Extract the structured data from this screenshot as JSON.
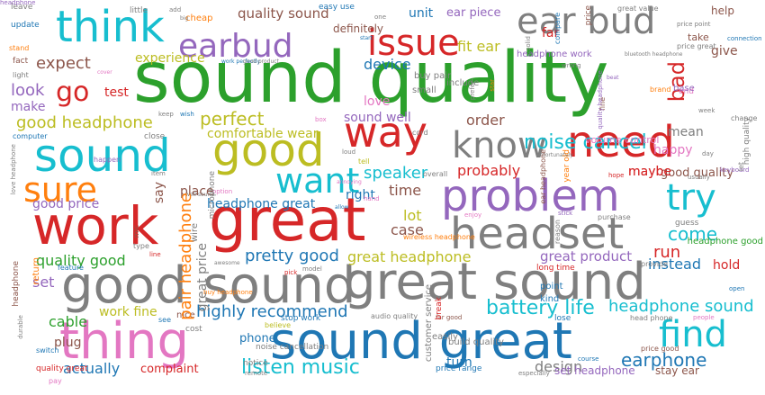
{
  "palette": {
    "green": "#2ca02c",
    "blue": "#1f77b4",
    "orange": "#ff7f0e",
    "red": "#d62728",
    "purple": "#9467bd",
    "brown": "#8c564b",
    "pink": "#e377c2",
    "gray": "#7f7f7f",
    "olive": "#bcbd22",
    "cyan": "#17becf"
  },
  "words": [
    {
      "text": "sound quality",
      "color": "green",
      "size": 78
    },
    {
      "text": "good sound",
      "color": "gray",
      "size": 56
    },
    {
      "text": "great sound",
      "color": "gray",
      "size": 56
    },
    {
      "text": "sound great",
      "color": "blue",
      "size": 56
    },
    {
      "text": "great",
      "color": "red",
      "size": 66
    },
    {
      "text": "work",
      "color": "red",
      "size": 58
    },
    {
      "text": "sound",
      "color": "cyan",
      "size": 50
    },
    {
      "text": "good",
      "color": "olive",
      "size": 50
    },
    {
      "text": "thing",
      "color": "pink",
      "size": 56
    },
    {
      "text": "problem",
      "color": "purple",
      "size": 48
    },
    {
      "text": "headset",
      "color": "gray",
      "size": 48
    },
    {
      "text": "think",
      "color": "cyan",
      "size": 48
    },
    {
      "text": "need",
      "color": "red",
      "size": 48
    },
    {
      "text": "issue",
      "color": "red",
      "size": 40
    },
    {
      "text": "ear bud",
      "color": "gray",
      "size": 40
    },
    {
      "text": "earbud",
      "color": "purple",
      "size": 36
    },
    {
      "text": "way",
      "color": "red",
      "size": 46
    },
    {
      "text": "know",
      "color": "gray",
      "size": 40
    },
    {
      "text": "want",
      "color": "cyan",
      "size": 38
    },
    {
      "text": "sure",
      "color": "orange",
      "size": 38
    },
    {
      "text": "try",
      "color": "cyan",
      "size": 40
    },
    {
      "text": "find",
      "color": "cyan",
      "size": 40
    },
    {
      "text": "go",
      "color": "red",
      "size": 30
    },
    {
      "text": "bad",
      "color": "red",
      "size": 24
    },
    {
      "text": "noise cancel",
      "color": "cyan",
      "size": 22
    },
    {
      "text": "battery life",
      "color": "cyan",
      "size": 22
    },
    {
      "text": "listen music",
      "color": "cyan",
      "size": 22
    },
    {
      "text": "highly recommend",
      "color": "blue",
      "size": 18
    },
    {
      "text": "pretty good",
      "color": "blue",
      "size": 18
    },
    {
      "text": "earphone",
      "color": "blue",
      "size": 20
    },
    {
      "text": "headphone sound",
      "color": "cyan",
      "size": 18
    },
    {
      "text": "good headphone",
      "color": "olive",
      "size": 18
    },
    {
      "text": "perfect",
      "color": "olive",
      "size": 20
    },
    {
      "text": "expect",
      "color": "brown",
      "size": 18
    },
    {
      "text": "look",
      "color": "purple",
      "size": 18
    },
    {
      "text": "make",
      "color": "purple",
      "size": 14
    },
    {
      "text": "test",
      "color": "red",
      "size": 14
    },
    {
      "text": "experience",
      "color": "olive",
      "size": 14
    },
    {
      "text": "quality sound",
      "color": "brown",
      "size": 15
    },
    {
      "text": "definitely",
      "color": "brown",
      "size": 12
    },
    {
      "text": "fit ear",
      "color": "olive",
      "size": 16
    },
    {
      "text": "device",
      "color": "blue",
      "size": 16
    },
    {
      "text": "love",
      "color": "pink",
      "size": 14
    },
    {
      "text": "sound well",
      "color": "purple",
      "size": 14
    },
    {
      "text": "order",
      "color": "brown",
      "size": 16
    },
    {
      "text": "comfortable wear",
      "color": "olive",
      "size": 14
    },
    {
      "text": "speaker",
      "color": "cyan",
      "size": 18
    },
    {
      "text": "probably",
      "color": "red",
      "size": 16
    },
    {
      "text": "time",
      "color": "brown",
      "size": 16
    },
    {
      "text": "lot",
      "color": "olive",
      "size": 16
    },
    {
      "text": "right",
      "color": "blue",
      "size": 14
    },
    {
      "text": "case",
      "color": "brown",
      "size": 16
    },
    {
      "text": "come",
      "color": "cyan",
      "size": 20
    },
    {
      "text": "run",
      "color": "red",
      "size": 18
    },
    {
      "text": "instead",
      "color": "blue",
      "size": 16
    },
    {
      "text": "great headphone",
      "color": "olive",
      "size": 16
    },
    {
      "text": "great product",
      "color": "purple",
      "size": 15
    },
    {
      "text": "headphone great",
      "color": "blue",
      "size": 14
    },
    {
      "text": "quality good",
      "color": "green",
      "size": 16
    },
    {
      "text": "good price",
      "color": "purple",
      "size": 14
    },
    {
      "text": "place",
      "color": "brown",
      "size": 14
    },
    {
      "text": "say",
      "color": "brown",
      "size": 14
    },
    {
      "text": "set",
      "color": "purple",
      "size": 16
    },
    {
      "text": "cable",
      "color": "green",
      "size": 16
    },
    {
      "text": "plug",
      "color": "brown",
      "size": 14
    },
    {
      "text": "actually",
      "color": "blue",
      "size": 16
    },
    {
      "text": "work fine",
      "color": "olive",
      "size": 14
    },
    {
      "text": "complaint",
      "color": "red",
      "size": 13
    },
    {
      "text": "design",
      "color": "gray",
      "size": 16
    },
    {
      "text": "turn",
      "color": "blue",
      "size": 14
    },
    {
      "text": "set headphone",
      "color": "purple",
      "size": 12
    },
    {
      "text": "stay ear",
      "color": "brown",
      "size": 12
    },
    {
      "text": "phone",
      "color": "blue",
      "size": 13
    },
    {
      "text": "mean",
      "color": "gray",
      "size": 14
    },
    {
      "text": "happy",
      "color": "pink",
      "size": 14
    },
    {
      "text": "maybe",
      "color": "red",
      "size": 14
    },
    {
      "text": "good quality",
      "color": "brown",
      "size": 13
    },
    {
      "text": "hold",
      "color": "red",
      "size": 14
    },
    {
      "text": "give",
      "color": "brown",
      "size": 14
    },
    {
      "text": "help",
      "color": "brown",
      "size": 12
    },
    {
      "text": "take",
      "color": "brown",
      "size": 11
    },
    {
      "text": "unit",
      "color": "blue",
      "size": 14
    },
    {
      "text": "ear piece",
      "color": "purple",
      "size": 13
    },
    {
      "text": "far",
      "color": "red",
      "size": 14
    },
    {
      "text": "volume control",
      "color": "pink",
      "size": 11
    },
    {
      "text": "headphone work",
      "color": "purple",
      "size": 10
    },
    {
      "text": "include",
      "color": "gray",
      "size": 10
    },
    {
      "text": "small",
      "color": "gray",
      "size": 10
    },
    {
      "text": "buy pair",
      "color": "gray",
      "size": 10
    },
    {
      "text": "maybe",
      "color": "red",
      "size": 14
    },
    {
      "text": "leave",
      "color": "gray",
      "size": 9
    },
    {
      "text": "little",
      "color": "gray",
      "size": 9
    },
    {
      "text": "update",
      "color": "blue",
      "size": 9
    },
    {
      "text": "fact",
      "color": "brown",
      "size": 9
    },
    {
      "text": "stand",
      "color": "orange",
      "size": 8
    },
    {
      "text": "cheap",
      "color": "orange",
      "size": 10
    },
    {
      "text": "easy use",
      "color": "blue",
      "size": 9
    },
    {
      "text": "price",
      "color": "brown",
      "size": 9
    },
    {
      "text": "great value",
      "color": "gray",
      "size": 8
    },
    {
      "text": "price point",
      "color": "gray",
      "size": 7
    },
    {
      "text": "price great",
      "color": "gray",
      "size": 8
    },
    {
      "text": "connection",
      "color": "blue",
      "size": 7
    },
    {
      "text": "wrong",
      "color": "gray",
      "size": 7
    },
    {
      "text": "brand",
      "color": "orange",
      "size": 8
    },
    {
      "text": "end",
      "color": "pink",
      "size": 9
    },
    {
      "text": "base",
      "color": "purple",
      "size": 10
    },
    {
      "text": "week",
      "color": "gray",
      "size": 7
    },
    {
      "text": "change",
      "color": "gray",
      "size": 8
    },
    {
      "text": "day",
      "color": "gray",
      "size": 7
    },
    {
      "text": "keyboard",
      "color": "purple",
      "size": 7
    },
    {
      "text": "let",
      "color": "gray",
      "size": 8
    },
    {
      "text": "high quality",
      "color": "gray",
      "size": 9
    },
    {
      "text": "headphone good",
      "color": "green",
      "size": 10
    },
    {
      "text": "guess",
      "color": "gray",
      "size": 9
    },
    {
      "text": "provide",
      "color": "gray",
      "size": 8
    },
    {
      "text": "open",
      "color": "blue",
      "size": 7
    },
    {
      "text": "hope",
      "color": "red",
      "size": 7
    },
    {
      "text": "usually",
      "color": "gray",
      "size": 7
    },
    {
      "text": "stick",
      "color": "purple",
      "size": 7
    },
    {
      "text": "purchase",
      "color": "gray",
      "size": 8
    },
    {
      "text": "enjoy",
      "color": "pink",
      "size": 7
    },
    {
      "text": "wireless headphone",
      "color": "orange",
      "size": 8
    },
    {
      "text": "long time",
      "color": "red",
      "size": 9
    },
    {
      "text": "point",
      "color": "blue",
      "size": 10
    },
    {
      "text": "kind",
      "color": "blue",
      "size": 10
    },
    {
      "text": "lose",
      "color": "blue",
      "size": 9
    },
    {
      "text": "head phone",
      "color": "gray",
      "size": 8
    },
    {
      "text": "people",
      "color": "pink",
      "size": 7
    },
    {
      "text": "price good",
      "color": "brown",
      "size": 8
    },
    {
      "text": "course",
      "color": "blue",
      "size": 7
    },
    {
      "text": "especially",
      "color": "gray",
      "size": 7
    },
    {
      "text": "price range",
      "color": "blue",
      "size": 9
    },
    {
      "text": "build quality",
      "color": "gray",
      "size": 10
    },
    {
      "text": "easily",
      "color": "gray",
      "size": 10
    },
    {
      "text": "far good",
      "color": "brown",
      "size": 7
    },
    {
      "text": "audio quality",
      "color": "gray",
      "size": 8
    },
    {
      "text": "stop work",
      "color": "blue",
      "size": 9
    },
    {
      "text": "noise cancellation",
      "color": "gray",
      "size": 9
    },
    {
      "text": "believe",
      "color": "olive",
      "size": 8
    },
    {
      "text": "notice",
      "color": "gray",
      "size": 9
    },
    {
      "text": "remote",
      "color": "gray",
      "size": 7
    },
    {
      "text": "cost",
      "color": "gray",
      "size": 9
    },
    {
      "text": "nice",
      "color": "brown",
      "size": 10
    },
    {
      "text": "see",
      "color": "blue",
      "size": 8
    },
    {
      "text": "switch",
      "color": "blue",
      "size": 8
    },
    {
      "text": "quality great",
      "color": "red",
      "size": 9
    },
    {
      "text": "pay",
      "color": "pink",
      "size": 8
    },
    {
      "text": "durable",
      "color": "gray",
      "size": 7
    },
    {
      "text": "return",
      "color": "orange",
      "size": 10
    },
    {
      "text": "feature",
      "color": "blue",
      "size": 8
    },
    {
      "text": "buy headphone",
      "color": "orange",
      "size": 7
    },
    {
      "text": "pick",
      "color": "red",
      "size": 7
    },
    {
      "text": "model",
      "color": "gray",
      "size": 7
    },
    {
      "text": "awesome",
      "color": "gray",
      "size": 6
    },
    {
      "text": "type",
      "color": "gray",
      "size": 8
    },
    {
      "text": "mic",
      "color": "brown",
      "size": 8
    },
    {
      "text": "line",
      "color": "red",
      "size": 7
    },
    {
      "text": "well sound",
      "color": "gray",
      "size": 6
    },
    {
      "text": "option",
      "color": "pink",
      "size": 7
    },
    {
      "text": "item",
      "color": "gray",
      "size": 7
    },
    {
      "text": "happen",
      "color": "purple",
      "size": 8
    },
    {
      "text": "close",
      "color": "gray",
      "size": 9
    },
    {
      "text": "computer",
      "color": "blue",
      "size": 8
    },
    {
      "text": "love headphone",
      "color": "gray",
      "size": 7
    },
    {
      "text": "wish",
      "color": "blue",
      "size": 7
    },
    {
      "text": "keep",
      "color": "gray",
      "size": 7
    },
    {
      "text": "box",
      "color": "pink",
      "size": 7
    },
    {
      "text": "cord",
      "color": "gray",
      "size": 8
    },
    {
      "text": "loud",
      "color": "gray",
      "size": 7
    },
    {
      "text": "tell",
      "color": "olive",
      "size": 8
    },
    {
      "text": "annoying",
      "color": "pink",
      "size": 6
    },
    {
      "text": "allow",
      "color": "blue",
      "size": 6
    },
    {
      "text": "hand",
      "color": "pink",
      "size": 7
    },
    {
      "text": "overall",
      "color": "gray",
      "size": 8
    },
    {
      "text": "unfortunately",
      "color": "gray",
      "size": 6
    },
    {
      "text": "one",
      "color": "gray",
      "size": 7
    },
    {
      "text": "start",
      "color": "blue",
      "size": 6
    },
    {
      "text": "work perfectly",
      "color": "blue",
      "size": 6
    },
    {
      "text": "good product",
      "color": "gray",
      "size": 6
    },
    {
      "text": "bluetooth headphone",
      "color": "gray",
      "size": 6
    },
    {
      "text": "cover",
      "color": "pink",
      "size": 6
    },
    {
      "text": "light",
      "color": "gray",
      "size": 8
    },
    {
      "text": "add",
      "color": "gray",
      "size": 7
    },
    {
      "text": "big",
      "color": "gray",
      "size": 6
    },
    {
      "text": "beat",
      "color": "purple",
      "size": 6
    },
    {
      "text": "star",
      "color": "orange",
      "size": 7
    },
    {
      "text": "fine",
      "color": "brown",
      "size": 8
    },
    {
      "text": "compare",
      "color": "blue",
      "size": 8
    },
    {
      "text": "prefer",
      "color": "gray",
      "size": 7
    },
    {
      "text": "ear headphone",
      "color": "brown",
      "size": 8
    },
    {
      "text": "year old",
      "color": "orange",
      "size": 9
    },
    {
      "text": "quality headphone",
      "color": "purple",
      "size": 7
    },
    {
      "text": "headphone",
      "color": "brown",
      "size": 9
    },
    {
      "text": "pair headphone",
      "color": "orange",
      "size": 18
    },
    {
      "text": "great price",
      "color": "gray",
      "size": 14
    },
    {
      "text": "wire",
      "color": "gray",
      "size": 10
    },
    {
      "text": "microphone",
      "color": "gray",
      "size": 9
    },
    {
      "text": "customer service",
      "color": "gray",
      "size": 10
    },
    {
      "text": "break",
      "color": "red",
      "size": 9
    },
    {
      "text": "reason",
      "color": "gray",
      "size": 8
    },
    {
      "text": "solid",
      "color": "gray",
      "size": 7
    },
    {
      "text": "headphone",
      "color": "purple",
      "size": 7
    }
  ]
}
